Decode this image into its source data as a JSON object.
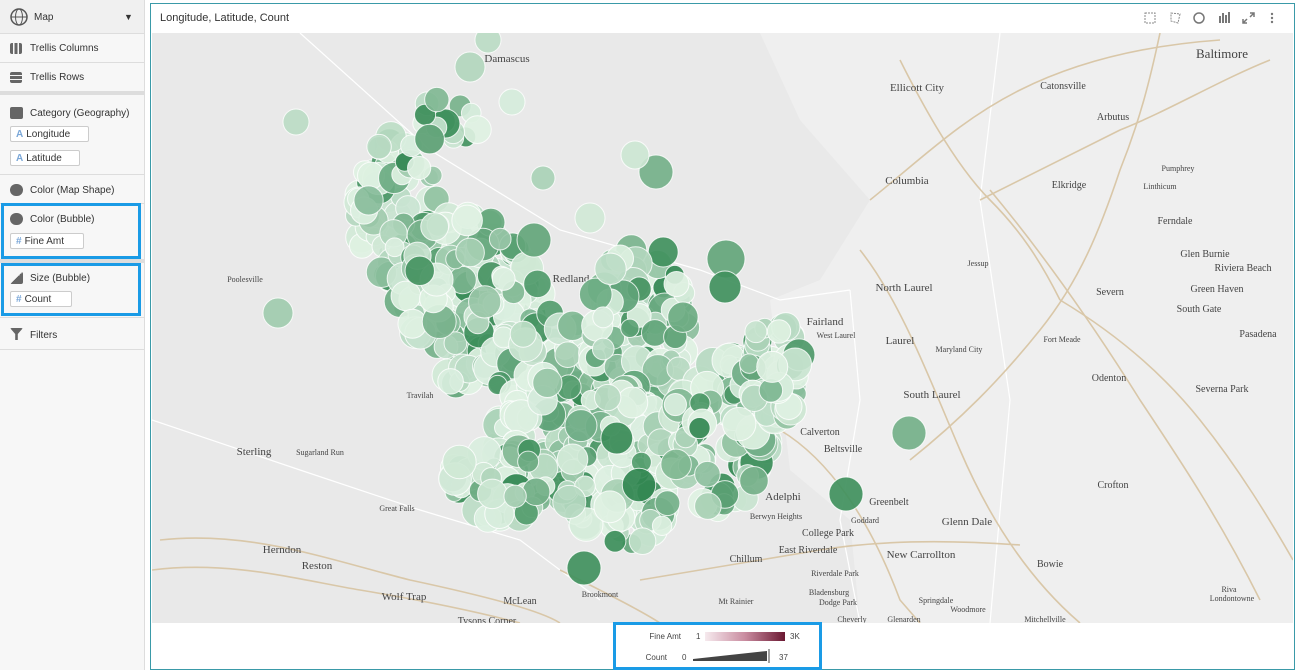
{
  "sidebar": {
    "visualization": "Map",
    "trellis_columns": "Trellis Columns",
    "trellis_rows": "Trellis Rows",
    "category": {
      "label": "Category (Geography)",
      "fields": [
        "Longitude",
        "Latitude"
      ]
    },
    "color_map_shape": "Color (Map Shape)",
    "color_bubble": {
      "label": "Color (Bubble)",
      "fields": [
        "Fine Amt"
      ]
    },
    "size_bubble": {
      "label": "Size (Bubble)",
      "fields": [
        "Count"
      ]
    },
    "filters": "Filters"
  },
  "panel": {
    "title": "Longitude, Latitude, Count"
  },
  "map": {
    "places": [
      "Damascus",
      "Ellicott City",
      "Catonsville",
      "Baltimore",
      "Arbutus",
      "Pumphrey",
      "Linthicum",
      "Columbia",
      "Elkridge",
      "Ferndale",
      "Glen Burnie",
      "Riviera Beach",
      "Jessup",
      "Green Haven",
      "Severn",
      "North Laurel",
      "South Gate",
      "Poolesville",
      "Redland",
      "Fairland",
      "West Laurel",
      "Laurel",
      "Maryland City",
      "Fort Meade",
      "Pasadena",
      "Odenton",
      "Travilah",
      "South Laurel",
      "Severna Park",
      "Calverton",
      "Beltsville",
      "Sterling",
      "Sugarland Run",
      "Crofton",
      "Adelphi",
      "Greenbelt",
      "Great Falls",
      "Berwyn Heights",
      "Goddard",
      "Glenn Dale",
      "College Park",
      "Herndon",
      "East Riverdale",
      "New Carrollton",
      "Chillum",
      "Reston",
      "Bowie",
      "Riverdale Park",
      "Bladensburg",
      "Dodge Park",
      "Springdale",
      "Woodmore",
      "Riva",
      "Londontowne",
      "Brookmont",
      "Wolf Trap",
      "McLean",
      "Mt Rainier",
      "Mitchellville",
      "Cheverly",
      "Glenarden",
      "Tysons Corner"
    ]
  },
  "legend": {
    "color": {
      "label": "Fine Amt",
      "min": 1,
      "max": "3K"
    },
    "size": {
      "label": "Count",
      "min": 0,
      "max": 37
    }
  }
}
